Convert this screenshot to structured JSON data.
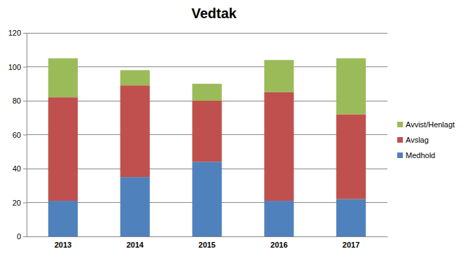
{
  "chart_data": {
    "type": "bar",
    "stacked": true,
    "title": "Vedtak",
    "categories": [
      "2013",
      "2014",
      "2015",
      "2016",
      "2017"
    ],
    "series": [
      {
        "name": "Medhold",
        "color": "#4f81bd",
        "values": [
          21,
          35,
          44,
          21,
          22
        ]
      },
      {
        "name": "Avslag",
        "color": "#c0504d",
        "values": [
          61,
          54,
          36,
          64,
          50
        ]
      },
      {
        "name": "Avvist/Henlagt",
        "color": "#9bbb59",
        "values": [
          23,
          9,
          10,
          19,
          33
        ]
      }
    ],
    "ylim": [
      0,
      120
    ],
    "yticks": [
      0,
      20,
      40,
      60,
      80,
      100,
      120
    ],
    "grid": true,
    "legend": "right"
  }
}
